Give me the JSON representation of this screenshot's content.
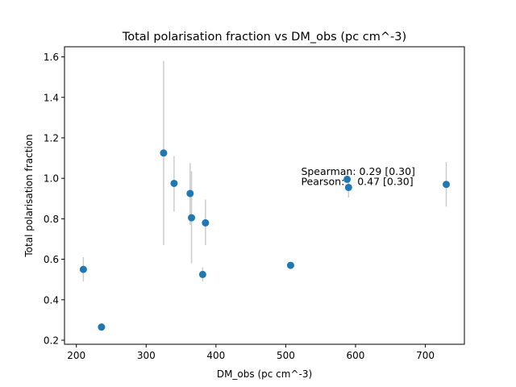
{
  "chart_data": {
    "type": "scatter",
    "title": "Total polarisation fraction vs DM_obs (pc cm^-3)",
    "xlabel": "DM_obs (pc cm^-3)",
    "ylabel": "Total polarisation fraction",
    "xlim": [
      183,
      756
    ],
    "ylim": [
      0.18,
      1.65
    ],
    "xticks": [
      200,
      300,
      400,
      500,
      600,
      700
    ],
    "yticks": [
      0.2,
      0.4,
      0.6,
      0.8,
      1.0,
      1.2,
      1.4,
      1.6
    ],
    "xtick_labels": [
      "200",
      "300",
      "400",
      "500",
      "600",
      "700"
    ],
    "ytick_labels": [
      "0.2",
      "0.4",
      "0.6",
      "0.8",
      "1.0",
      "1.2",
      "1.4",
      "1.6"
    ],
    "grid": false,
    "marker_color": "#1f77b4",
    "errorbar_color": "#cccccc",
    "points": [
      {
        "x": 210,
        "y": 0.55,
        "err_low": 0.49,
        "err_high": 0.61
      },
      {
        "x": 236,
        "y": 0.265,
        "err_low": 0.26,
        "err_high": 0.27
      },
      {
        "x": 325,
        "y": 1.125,
        "err_low": 0.67,
        "err_high": 1.58
      },
      {
        "x": 340,
        "y": 0.975,
        "err_low": 0.835,
        "err_high": 1.11
      },
      {
        "x": 363,
        "y": 0.925,
        "err_low": 0.77,
        "err_high": 1.075
      },
      {
        "x": 365,
        "y": 0.805,
        "err_low": 0.58,
        "err_high": 1.035
      },
      {
        "x": 381,
        "y": 0.525,
        "err_low": 0.49,
        "err_high": 0.56
      },
      {
        "x": 385,
        "y": 0.78,
        "err_low": 0.67,
        "err_high": 0.895
      },
      {
        "x": 507,
        "y": 0.57,
        "err_low": 0.565,
        "err_high": 0.575
      },
      {
        "x": 588,
        "y": 0.995,
        "err_low": 0.99,
        "err_high": 1.0
      },
      {
        "x": 590,
        "y": 0.955,
        "err_low": 0.905,
        "err_high": 1.0
      },
      {
        "x": 730,
        "y": 0.97,
        "err_low": 0.86,
        "err_high": 1.08
      }
    ],
    "annotations": [
      {
        "x": 522,
        "y": 1.035,
        "text": "Spearman: 0.29 [0.30]"
      },
      {
        "x": 522,
        "y": 0.985,
        "text": "Pearson:    0.47 [0.30]"
      }
    ]
  }
}
